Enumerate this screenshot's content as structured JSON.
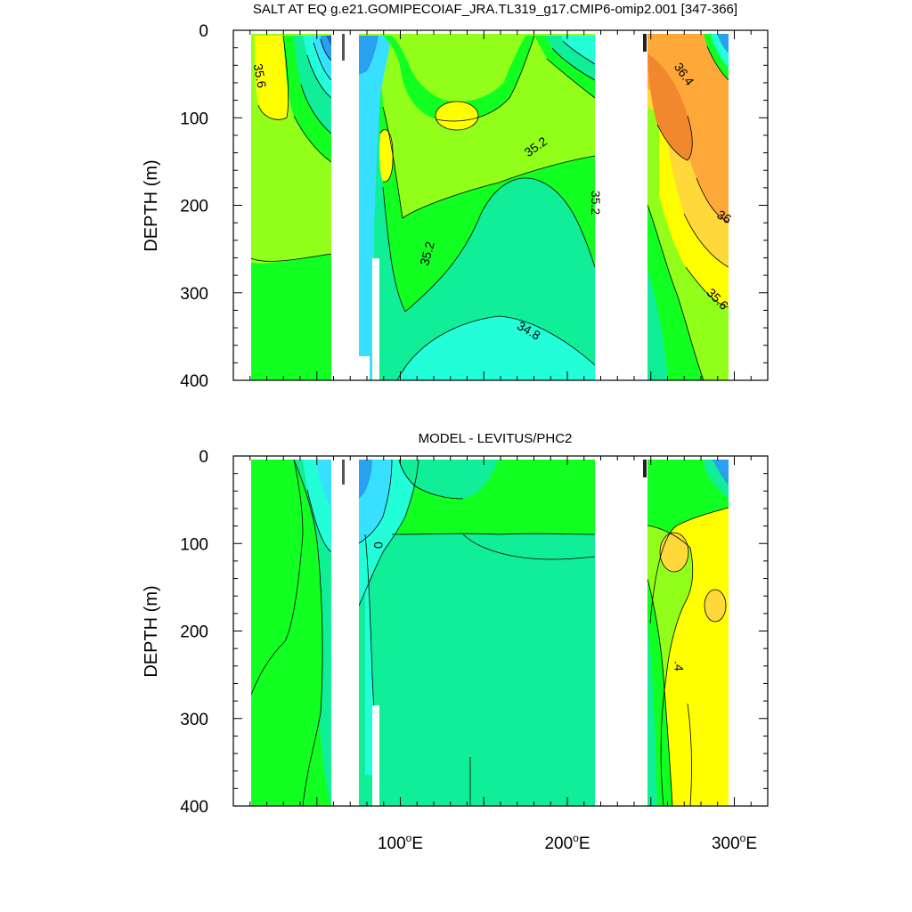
{
  "chart_data": [
    {
      "type": "contour",
      "title": "SALT AT EQ g.e21.GOMIPECOIAF_JRA.TL319_g17.CMIP6-omip2.001 [347-366]",
      "ylabel": "DEPTH (m)",
      "xlim": [
        0,
        320
      ],
      "ylim": [
        400,
        0
      ],
      "y_ticks": [
        "0",
        "100",
        "200",
        "300",
        "400"
      ],
      "colors": {
        "deep_blue": "#1e5fd0",
        "blue": "#2aa0f0",
        "cyan": "#38e0ff",
        "aqua": "#22ffd8",
        "green_teal": "#10ee98",
        "green": "#12ff22",
        "light_green": "#92ff1a",
        "yellow": "#ffff00",
        "gold": "#ffd83a",
        "orange": "#ffa83a",
        "dark_orange": "#f2882e"
      },
      "contour_labels": [
        {
          "text": "35.6",
          "x": 16,
          "y": 52,
          "angle": 80
        },
        {
          "text": "35.2",
          "x": 181,
          "y": 133,
          "angle": -35
        },
        {
          "text": "35.2",
          "x": 116,
          "y": 255,
          "angle": -75
        },
        {
          "text": "35.2",
          "x": 217,
          "y": 197,
          "angle": 90
        },
        {
          "text": "34.8",
          "x": 177,
          "y": 343,
          "angle": 30
        },
        {
          "text": "36.4",
          "x": 270,
          "y": 50,
          "angle": 55
        },
        {
          "text": "36",
          "x": 294,
          "y": 213,
          "angle": 30
        },
        {
          "text": "35.6",
          "x": 290,
          "y": 307,
          "angle": 45
        }
      ]
    },
    {
      "type": "contour",
      "title": "MODEL - LEVITUS/PHC2",
      "ylabel": "DEPTH (m)",
      "xlim": [
        0,
        320
      ],
      "ylim": [
        400,
        0
      ],
      "x_ticks": [
        {
          "value": 100,
          "label": "100",
          "unit": "o",
          "suffix": "E"
        },
        {
          "value": 200,
          "label": "200",
          "unit": "o",
          "suffix": "E"
        },
        {
          "value": 300,
          "label": "300",
          "unit": "o",
          "suffix": "E"
        }
      ],
      "y_ticks": [
        "0",
        "100",
        "200",
        "300",
        "400"
      ],
      "contour_labels": [
        {
          "text": "0",
          "x": 87,
          "y": 102,
          "angle": 90
        },
        {
          "text": ".4",
          "x": 267,
          "y": 240,
          "angle": 90
        }
      ]
    }
  ]
}
